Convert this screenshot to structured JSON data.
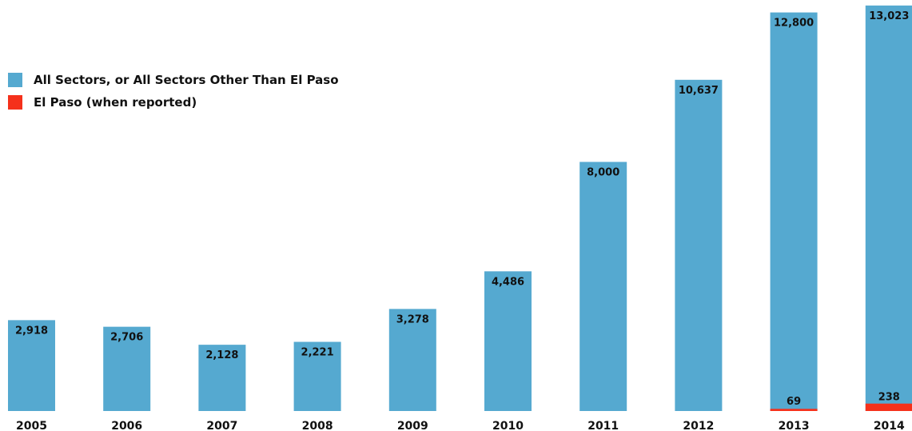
{
  "chart_data": {
    "type": "bar",
    "stacked": true,
    "title": "",
    "xlabel": "",
    "ylabel": "",
    "ylim": [
      0,
      13200
    ],
    "grid": false,
    "legend_position": "top-left",
    "categories": [
      "2005",
      "2006",
      "2007",
      "2008",
      "2009",
      "2010",
      "2011",
      "2012",
      "2013",
      "2014"
    ],
    "series": [
      {
        "name": "All Sectors, or All Sectors Other Than El Paso",
        "color": "#55a9d0",
        "values": [
          2918,
          2706,
          2128,
          2221,
          3278,
          4486,
          8000,
          10637,
          12800,
          13023
        ],
        "labels": [
          "2,918",
          "2,706",
          "2,128",
          "2,221",
          "3,278",
          "4,486",
          "8,000",
          "10,637",
          "12,800",
          "13,023"
        ]
      },
      {
        "name": "El Paso (when reported)",
        "color": "#f5311b",
        "values": [
          null,
          null,
          null,
          null,
          null,
          null,
          null,
          null,
          69,
          238
        ],
        "labels": [
          "",
          "",
          "",
          "",
          "",
          "",
          "",
          "",
          "69",
          "238"
        ]
      }
    ]
  }
}
